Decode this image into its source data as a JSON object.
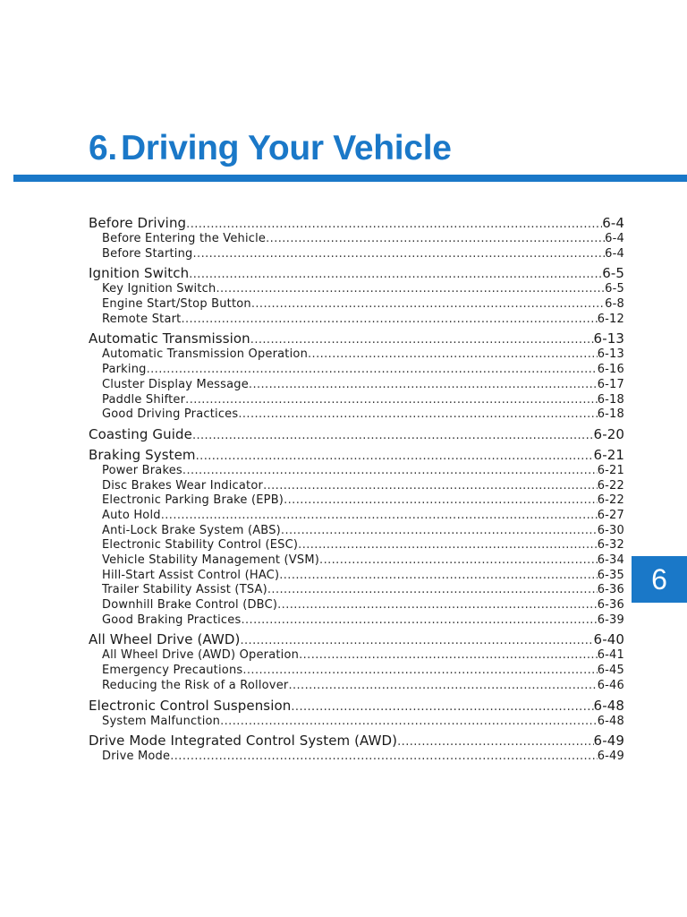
{
  "chapter": {
    "number": "6.",
    "title": "Driving Your Vehicle",
    "tab_label": "6",
    "accent_color": "#1a78c8"
  },
  "toc": [
    {
      "title": "Before Driving",
      "page": "6-4",
      "items": [
        {
          "title": "Before Entering the Vehicle",
          "page": "6-4"
        },
        {
          "title": "Before Starting",
          "page": "6-4"
        }
      ]
    },
    {
      "title": "Ignition Switch",
      "page": "6-5",
      "items": [
        {
          "title": "Key Ignition Switch",
          "page": "6-5"
        },
        {
          "title": "Engine Start/Stop Button",
          "page": "6-8"
        },
        {
          "title": "Remote Start",
          "page": "6-12"
        }
      ]
    },
    {
      "title": "Automatic Transmission",
      "page": "6-13",
      "items": [
        {
          "title": "Automatic Transmission Operation",
          "page": "6-13"
        },
        {
          "title": "Parking",
          "page": "6-16"
        },
        {
          "title": "Cluster Display Message",
          "page": "6-17"
        },
        {
          "title": "Paddle Shifter",
          "page": "6-18"
        },
        {
          "title": "Good Driving Practices",
          "page": "6-18"
        }
      ]
    },
    {
      "title": "Coasting Guide",
      "page": "6-20",
      "items": []
    },
    {
      "title": "Braking System",
      "page": "6-21",
      "items": [
        {
          "title": "Power Brakes",
          "page": "6-21"
        },
        {
          "title": "Disc Brakes Wear Indicator",
          "page": "6-22"
        },
        {
          "title": "Electronic Parking Brake (EPB)",
          "page": "6-22"
        },
        {
          "title": "Auto Hold",
          "page": "6-27"
        },
        {
          "title": "Anti-Lock Brake System (ABS)",
          "page": "6-30"
        },
        {
          "title": "Electronic Stability Control (ESC)",
          "page": "6-32"
        },
        {
          "title": "Vehicle Stability Management (VSM)",
          "page": "6-34"
        },
        {
          "title": "Hill-Start Assist Control (HAC)",
          "page": "6-35"
        },
        {
          "title": "Trailer Stability Assist (TSA)",
          "page": "6-36"
        },
        {
          "title": "Downhill Brake Control (DBC)",
          "page": "6-36"
        },
        {
          "title": "Good Braking Practices",
          "page": "6-39"
        }
      ]
    },
    {
      "title": "All Wheel Drive (AWD)",
      "page": "6-40",
      "items": [
        {
          "title": "All Wheel Drive (AWD) Operation",
          "page": "6-41"
        },
        {
          "title": "Emergency Precautions",
          "page": "6-45"
        },
        {
          "title": "Reducing the Risk of a Rollover",
          "page": "6-46"
        }
      ]
    },
    {
      "title": "Electronic Control Suspension",
      "page": "6-48",
      "items": [
        {
          "title": "System Malfunction",
          "page": "6-48"
        }
      ]
    },
    {
      "title": "Drive Mode Integrated Control System (AWD)",
      "page": "6-49",
      "items": [
        {
          "title": "Drive Mode",
          "page": "6-49"
        }
      ]
    }
  ]
}
